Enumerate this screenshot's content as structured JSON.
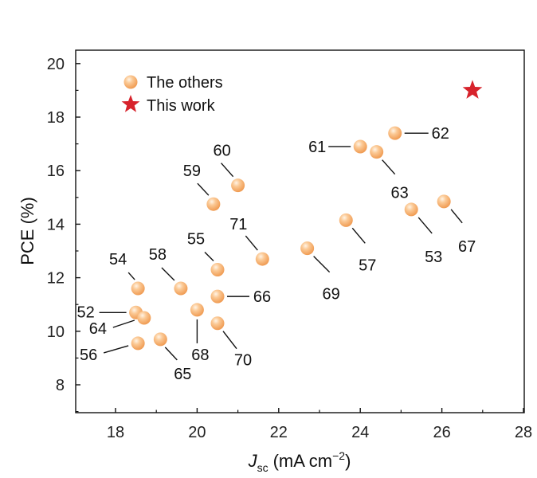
{
  "chart_data": {
    "type": "scatter",
    "xlabel_main": "J",
    "xlabel_sub": "sc",
    "xlabel_unit": "(mA cm",
    "xlabel_sup": "−2",
    "xlabel_close": ")",
    "ylabel": "PCE (%)",
    "xlim": [
      17,
      28
    ],
    "ylim": [
      7,
      21
    ],
    "xticks": [
      "18",
      "20",
      "22",
      "24",
      "26",
      "28"
    ],
    "yticks": [
      "8",
      "10",
      "12",
      "14",
      "16",
      "18",
      "20"
    ],
    "legend": {
      "position": "top-left",
      "entries": [
        "The others",
        "This work"
      ]
    },
    "colors": {
      "others": "#f4a862",
      "others_highlight": "#fde6cc",
      "this_work": "#d7232c"
    },
    "series": [
      {
        "name": "The others",
        "points": [
          {
            "x": 18.5,
            "y": 10.7,
            "label": "52"
          },
          {
            "x": 25.25,
            "y": 14.55,
            "label": "53"
          },
          {
            "x": 18.55,
            "y": 11.6,
            "label": "54"
          },
          {
            "x": 20.5,
            "y": 12.3,
            "label": "55"
          },
          {
            "x": 18.55,
            "y": 9.55,
            "label": "56"
          },
          {
            "x": 23.65,
            "y": 14.15,
            "label": "57"
          },
          {
            "x": 19.6,
            "y": 11.6,
            "label": "58"
          },
          {
            "x": 20.4,
            "y": 14.75,
            "label": "59"
          },
          {
            "x": 21.0,
            "y": 15.45,
            "label": "60"
          },
          {
            "x": 24.0,
            "y": 16.9,
            "label": "61"
          },
          {
            "x": 24.85,
            "y": 17.4,
            "label": "62"
          },
          {
            "x": 24.4,
            "y": 16.7,
            "label": "63"
          },
          {
            "x": 18.7,
            "y": 10.5,
            "label": "64"
          },
          {
            "x": 19.1,
            "y": 9.7,
            "label": "65"
          },
          {
            "x": 20.5,
            "y": 11.3,
            "label": "66"
          },
          {
            "x": 26.05,
            "y": 14.85,
            "label": "67"
          },
          {
            "x": 20.0,
            "y": 10.8,
            "label": "68"
          },
          {
            "x": 22.7,
            "y": 13.1,
            "label": "69"
          },
          {
            "x": 20.5,
            "y": 10.3,
            "label": "70"
          },
          {
            "x": 21.6,
            "y": 12.7,
            "label": "71"
          }
        ]
      },
      {
        "name": "This work",
        "points": [
          {
            "x": 26.75,
            "y": 19.0
          }
        ]
      }
    ]
  }
}
